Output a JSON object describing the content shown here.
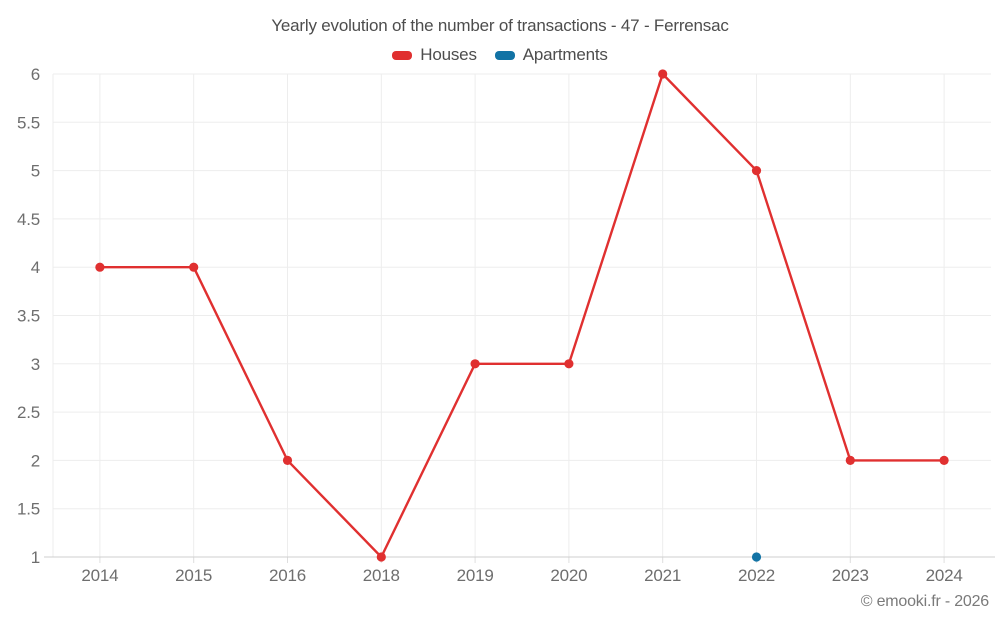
{
  "header": {
    "title": "Yearly evolution of the number of transactions - 47 - Ferrensac"
  },
  "chart_data": {
    "type": "line",
    "title": "Yearly evolution of the number of transactions - 47 - Ferrensac",
    "categories": [
      "2014",
      "2015",
      "2016",
      "2018",
      "2019",
      "2020",
      "2021",
      "2022",
      "2023",
      "2024"
    ],
    "series": [
      {
        "name": "Houses",
        "color": "#e03030",
        "values": [
          4,
          4,
          2,
          1,
          3,
          3,
          6,
          5,
          2,
          2
        ],
        "marker": "circle",
        "show_line": true
      },
      {
        "name": "Apartments",
        "color": "#1273a5",
        "values": [
          null,
          null,
          null,
          null,
          null,
          null,
          null,
          1,
          null,
          null
        ],
        "marker": "circle",
        "show_line": true
      }
    ],
    "xlabel": "",
    "ylabel": "",
    "ylim": [
      1,
      6
    ],
    "y_ticks": [
      1,
      1.5,
      2,
      2.5,
      3,
      3.5,
      4,
      4.5,
      5,
      5.5,
      6
    ],
    "y_tick_labels": [
      "1",
      "1.5",
      "2",
      "2.5",
      "3",
      "3.5",
      "4",
      "4.5",
      "5",
      "5.5",
      "6"
    ],
    "grid": true,
    "legend_position": "top"
  },
  "footer": {
    "credit": "© emooki.fr - 2026"
  }
}
